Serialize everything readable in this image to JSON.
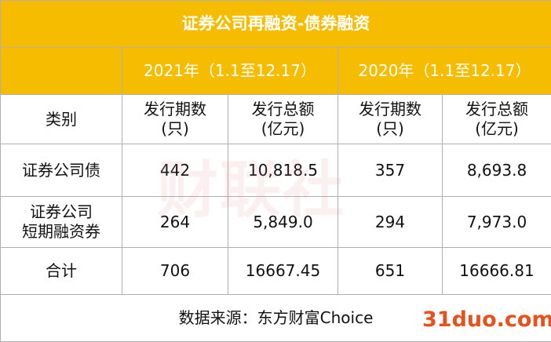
{
  "title": "证券公司再融资-债券融资",
  "table": {
    "year_headers": [
      "2021年（1.1至12.17）",
      "2020年（1.1至12.17）"
    ],
    "header": [
      [
        "类别"
      ],
      [
        "发行期数",
        "(只)"
      ],
      [
        "发行总额",
        "(亿元)"
      ],
      [
        "发行期数",
        "(只)"
      ],
      [
        "发行总额",
        "(亿元)"
      ]
    ],
    "rows": [
      [
        [
          "证券公司债"
        ],
        [
          "442"
        ],
        [
          "10,818.5"
        ],
        [
          "357"
        ],
        [
          "8,693.8"
        ]
      ],
      [
        [
          "证券公司",
          "短期融资券"
        ],
        [
          "264"
        ],
        [
          "5,849.0"
        ],
        [
          "294"
        ],
        [
          "7,973.0"
        ]
      ],
      [
        [
          "合计"
        ],
        [
          "706"
        ],
        [
          "16667.45"
        ],
        [
          "651"
        ],
        [
          "16666.81"
        ]
      ]
    ]
  },
  "source": "数据来源：东方财富Choice",
  "watermarks": [
    "财联社",
    "31duo.com"
  ]
}
